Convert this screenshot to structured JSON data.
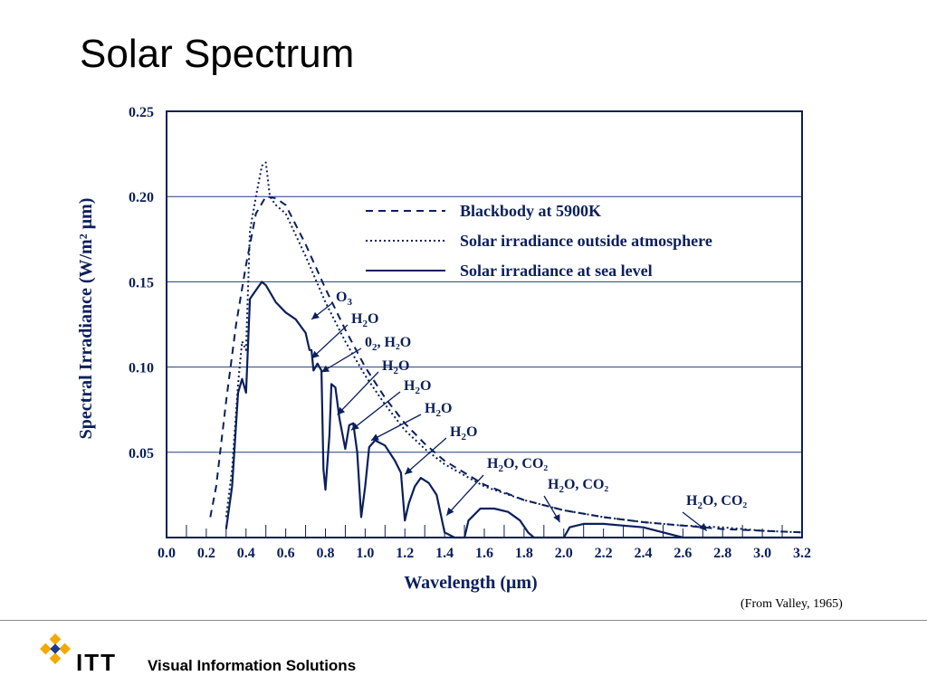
{
  "slide": {
    "title": "Solar Spectrum",
    "credit": "(From Valley, 1965)",
    "footer": {
      "logo_text": "ITT",
      "tagline": "Visual Information Solutions"
    }
  },
  "chart_data": {
    "type": "line",
    "xlabel": "Wavelength (μm)",
    "ylabel": "Spectral Irradiance (W/m² μm)",
    "xlim": [
      0.0,
      3.2
    ],
    "ylim": [
      0.0,
      0.25
    ],
    "x_ticks": [
      "0.0",
      "0.2",
      "0.4",
      "0.6",
      "0.8",
      "1.0",
      "1.2",
      "1.4",
      "1.6",
      "1.8",
      "2.0",
      "2.2",
      "2.4",
      "2.6",
      "2.8",
      "3.0",
      "3.2"
    ],
    "y_ticks": [
      "0.05",
      "0.10",
      "0.15",
      "0.20",
      "0.25"
    ],
    "grid": "horizontal",
    "legend_position": "top-right",
    "series": [
      {
        "name": "Blackbody at 5900K",
        "style": "dashed",
        "points": [
          [
            0.22,
            0.012
          ],
          [
            0.25,
            0.03
          ],
          [
            0.3,
            0.08
          ],
          [
            0.35,
            0.125
          ],
          [
            0.4,
            0.16
          ],
          [
            0.45,
            0.19
          ],
          [
            0.5,
            0.2
          ],
          [
            0.55,
            0.199
          ],
          [
            0.6,
            0.195
          ],
          [
            0.7,
            0.172
          ],
          [
            0.8,
            0.146
          ],
          [
            0.9,
            0.122
          ],
          [
            1.0,
            0.1
          ],
          [
            1.1,
            0.082
          ],
          [
            1.2,
            0.067
          ],
          [
            1.3,
            0.055
          ],
          [
            1.4,
            0.045
          ],
          [
            1.6,
            0.031
          ],
          [
            1.8,
            0.022
          ],
          [
            2.0,
            0.016
          ],
          [
            2.2,
            0.012
          ],
          [
            2.4,
            0.009
          ],
          [
            2.6,
            0.007
          ],
          [
            2.8,
            0.005
          ],
          [
            3.0,
            0.004
          ],
          [
            3.2,
            0.003
          ]
        ]
      },
      {
        "name": "Solar irradiance outside atmosphere",
        "style": "dotted",
        "points": [
          [
            0.3,
            0.012
          ],
          [
            0.33,
            0.04
          ],
          [
            0.36,
            0.09
          ],
          [
            0.38,
            0.115
          ],
          [
            0.4,
            0.11
          ],
          [
            0.42,
            0.18
          ],
          [
            0.45,
            0.2
          ],
          [
            0.48,
            0.218
          ],
          [
            0.5,
            0.22
          ],
          [
            0.52,
            0.2
          ],
          [
            0.55,
            0.195
          ],
          [
            0.6,
            0.19
          ],
          [
            0.7,
            0.165
          ],
          [
            0.8,
            0.138
          ],
          [
            0.9,
            0.115
          ],
          [
            1.0,
            0.095
          ],
          [
            1.1,
            0.078
          ],
          [
            1.2,
            0.063
          ],
          [
            1.3,
            0.052
          ],
          [
            1.4,
            0.043
          ],
          [
            1.6,
            0.03
          ],
          [
            1.8,
            0.022
          ],
          [
            2.0,
            0.016
          ],
          [
            2.2,
            0.012
          ],
          [
            2.4,
            0.009
          ],
          [
            2.6,
            0.007
          ],
          [
            2.8,
            0.006
          ],
          [
            3.0,
            0.004
          ],
          [
            3.2,
            0.003
          ]
        ]
      },
      {
        "name": "Solar irradiance at sea level",
        "style": "solid",
        "points": [
          [
            0.3,
            0.005
          ],
          [
            0.33,
            0.03
          ],
          [
            0.36,
            0.085
          ],
          [
            0.38,
            0.093
          ],
          [
            0.4,
            0.085
          ],
          [
            0.42,
            0.14
          ],
          [
            0.45,
            0.145
          ],
          [
            0.48,
            0.15
          ],
          [
            0.5,
            0.148
          ],
          [
            0.55,
            0.138
          ],
          [
            0.6,
            0.132
          ],
          [
            0.65,
            0.128
          ],
          [
            0.7,
            0.12
          ],
          [
            0.72,
            0.11
          ],
          [
            0.73,
            0.11
          ],
          [
            0.74,
            0.098
          ],
          [
            0.76,
            0.102
          ],
          [
            0.78,
            0.098
          ],
          [
            0.79,
            0.04
          ],
          [
            0.8,
            0.028
          ],
          [
            0.82,
            0.06
          ],
          [
            0.83,
            0.09
          ],
          [
            0.85,
            0.088
          ],
          [
            0.87,
            0.07
          ],
          [
            0.9,
            0.052
          ],
          [
            0.92,
            0.066
          ],
          [
            0.94,
            0.067
          ],
          [
            0.96,
            0.05
          ],
          [
            0.98,
            0.012
          ],
          [
            1.0,
            0.03
          ],
          [
            1.02,
            0.053
          ],
          [
            1.05,
            0.057
          ],
          [
            1.1,
            0.054
          ],
          [
            1.15,
            0.045
          ],
          [
            1.18,
            0.038
          ],
          [
            1.2,
            0.01
          ],
          [
            1.22,
            0.02
          ],
          [
            1.25,
            0.03
          ],
          [
            1.28,
            0.035
          ],
          [
            1.32,
            0.032
          ],
          [
            1.36,
            0.025
          ],
          [
            1.4,
            0.003
          ],
          [
            1.45,
            0.0
          ],
          [
            1.5,
            0.0
          ],
          [
            1.52,
            0.01
          ],
          [
            1.58,
            0.017
          ],
          [
            1.65,
            0.017
          ],
          [
            1.72,
            0.015
          ],
          [
            1.78,
            0.01
          ],
          [
            1.82,
            0.003
          ],
          [
            1.85,
            0.0
          ],
          [
            2.0,
            0.0
          ],
          [
            2.03,
            0.006
          ],
          [
            2.1,
            0.008
          ],
          [
            2.2,
            0.008
          ],
          [
            2.3,
            0.007
          ],
          [
            2.4,
            0.006
          ],
          [
            2.5,
            0.003
          ],
          [
            2.6,
            0.0
          ],
          [
            3.2,
            0.0
          ]
        ]
      }
    ],
    "annotations": [
      {
        "main": "O",
        "sub": "3",
        "rest": "",
        "x": 0.73,
        "y": 0.128
      },
      {
        "main": "H",
        "sub": "2",
        "rest": "O",
        "x": 0.73,
        "y": 0.105
      },
      {
        "main": "0",
        "sub": "2",
        "rest": ", H₂O",
        "x": 0.78,
        "y": 0.097
      },
      {
        "main": "H",
        "sub": "2",
        "rest": "O",
        "x": 0.86,
        "y": 0.072
      },
      {
        "main": "H",
        "sub": "2",
        "rest": "O",
        "x": 0.93,
        "y": 0.063
      },
      {
        "main": "H",
        "sub": "2",
        "rest": "O",
        "x": 1.03,
        "y": 0.057
      },
      {
        "main": "H",
        "sub": "2",
        "rest": "O",
        "x": 1.2,
        "y": 0.037
      },
      {
        "main": "H",
        "sub": "2",
        "rest": "O, CO₂",
        "x": 1.41,
        "y": 0.013
      },
      {
        "main": "H",
        "sub": "2",
        "rest": "O, CO₂",
        "x": 1.98,
        "y": 0.009
      },
      {
        "main": "H",
        "sub": "2",
        "rest": "O, CO₂",
        "x": 2.72,
        "y": 0.004
      }
    ]
  }
}
